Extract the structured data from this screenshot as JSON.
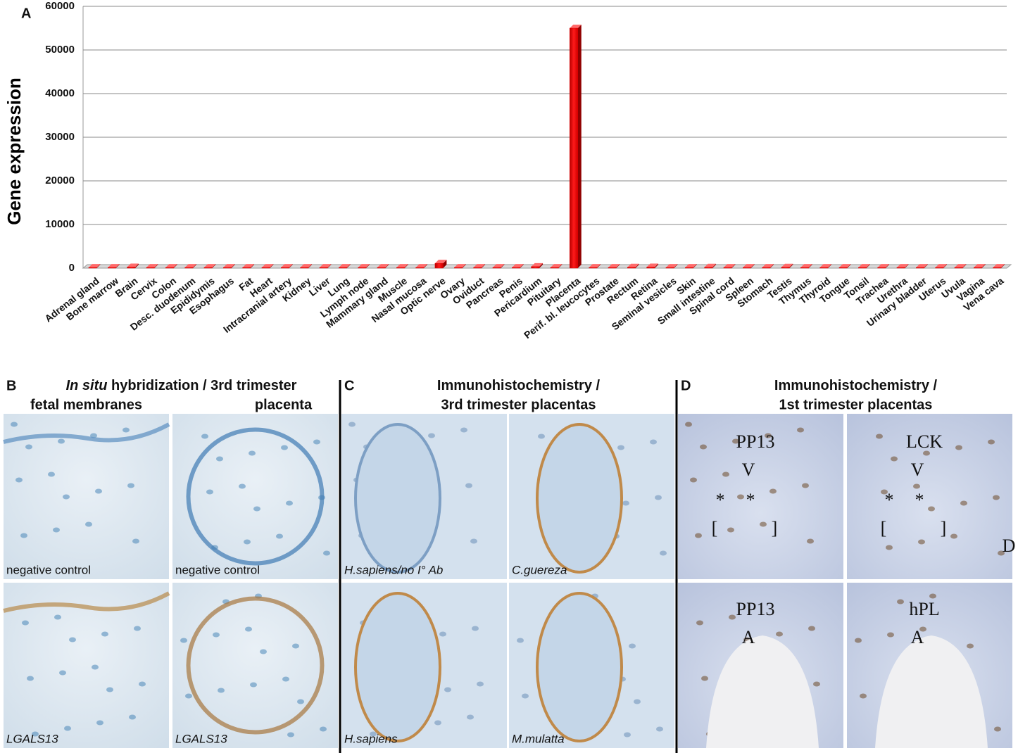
{
  "chart_data": {
    "type": "bar",
    "panel_label": "A",
    "y_label": "Gene expression",
    "categories": [
      "Adrenal gland",
      "Bone marrow",
      "Brain",
      "Cervix",
      "Colon",
      "Desc. duodenum",
      "Epididymis",
      "Esophagus",
      "Fat",
      "Heart",
      "Intracranial artery",
      "Kidney",
      "Liver",
      "Lung",
      "Lymph node",
      "Mammary gland",
      "Muscle",
      "Nasal mucosa",
      "Optic nerve",
      "Ovary",
      "Oviduct",
      "Pancreas",
      "Penis",
      "Pericardium",
      "Pituitary",
      "Placenta",
      "Perif. bl. leucocytes",
      "Prostate",
      "Rectum",
      "Retina",
      "Seminal vesicles",
      "Skin",
      "Small intestine",
      "Spinal cord",
      "Spleen",
      "Stomach",
      "Testis",
      "Thymus",
      "Thyroid",
      "Tongue",
      "Tonsil",
      "Trachea",
      "Urethra",
      "Urinary bladder",
      "Uterus",
      "Uvula",
      "Vagina",
      "Vena cava"
    ],
    "values": [
      150,
      150,
      250,
      150,
      150,
      150,
      150,
      150,
      150,
      150,
      150,
      150,
      150,
      150,
      150,
      150,
      150,
      150,
      1100,
      150,
      150,
      150,
      150,
      350,
      150,
      55000,
      150,
      150,
      200,
      250,
      150,
      150,
      200,
      150,
      150,
      150,
      200,
      150,
      150,
      150,
      150,
      150,
      150,
      150,
      150,
      150,
      150,
      150
    ],
    "color": "#e00000",
    "ylim": [
      0,
      60000
    ],
    "yticks": [
      0,
      10000,
      20000,
      30000,
      40000,
      50000,
      60000
    ],
    "grid": true
  },
  "panels": [
    {
      "letter": "B",
      "title": [
        {
          "text": "In situ",
          "italic": true
        },
        {
          "text": " hybridization / 3rd trimester",
          "italic": false
        }
      ],
      "columns": [
        "fetal membranes",
        "placenta"
      ],
      "images": [
        {
          "caption": "negative control",
          "italic": false
        },
        {
          "caption": "negative control",
          "italic": false
        },
        {
          "caption": "LGALS13",
          "italic": true
        },
        {
          "caption": "LGALS13",
          "italic": true
        }
      ]
    },
    {
      "letter": "C",
      "title": [
        {
          "text": "Immunohistochemistry /",
          "italic": false
        }
      ],
      "subtitle": "3rd trimester placentas",
      "images": [
        {
          "caption": "H.sapiens/no I° Ab",
          "italic": true
        },
        {
          "caption": "C.guereza",
          "italic": true
        },
        {
          "caption": "H.sapiens",
          "italic": true
        },
        {
          "caption": "M.mulatta",
          "italic": true
        }
      ]
    },
    {
      "letter": "D",
      "title": [
        {
          "text": "Immunohistochemistry /",
          "italic": false
        }
      ],
      "subtitle": "1st trimester placentas",
      "images": [
        {
          "labels": [
            "PP13",
            "V",
            "*",
            "*",
            "[",
            "]"
          ]
        },
        {
          "labels": [
            "LCK",
            "V",
            "*",
            "*",
            "[",
            "]",
            "D"
          ]
        },
        {
          "labels": [
            "PP13",
            "A"
          ]
        },
        {
          "labels": [
            "hPL",
            "A"
          ]
        }
      ]
    }
  ]
}
